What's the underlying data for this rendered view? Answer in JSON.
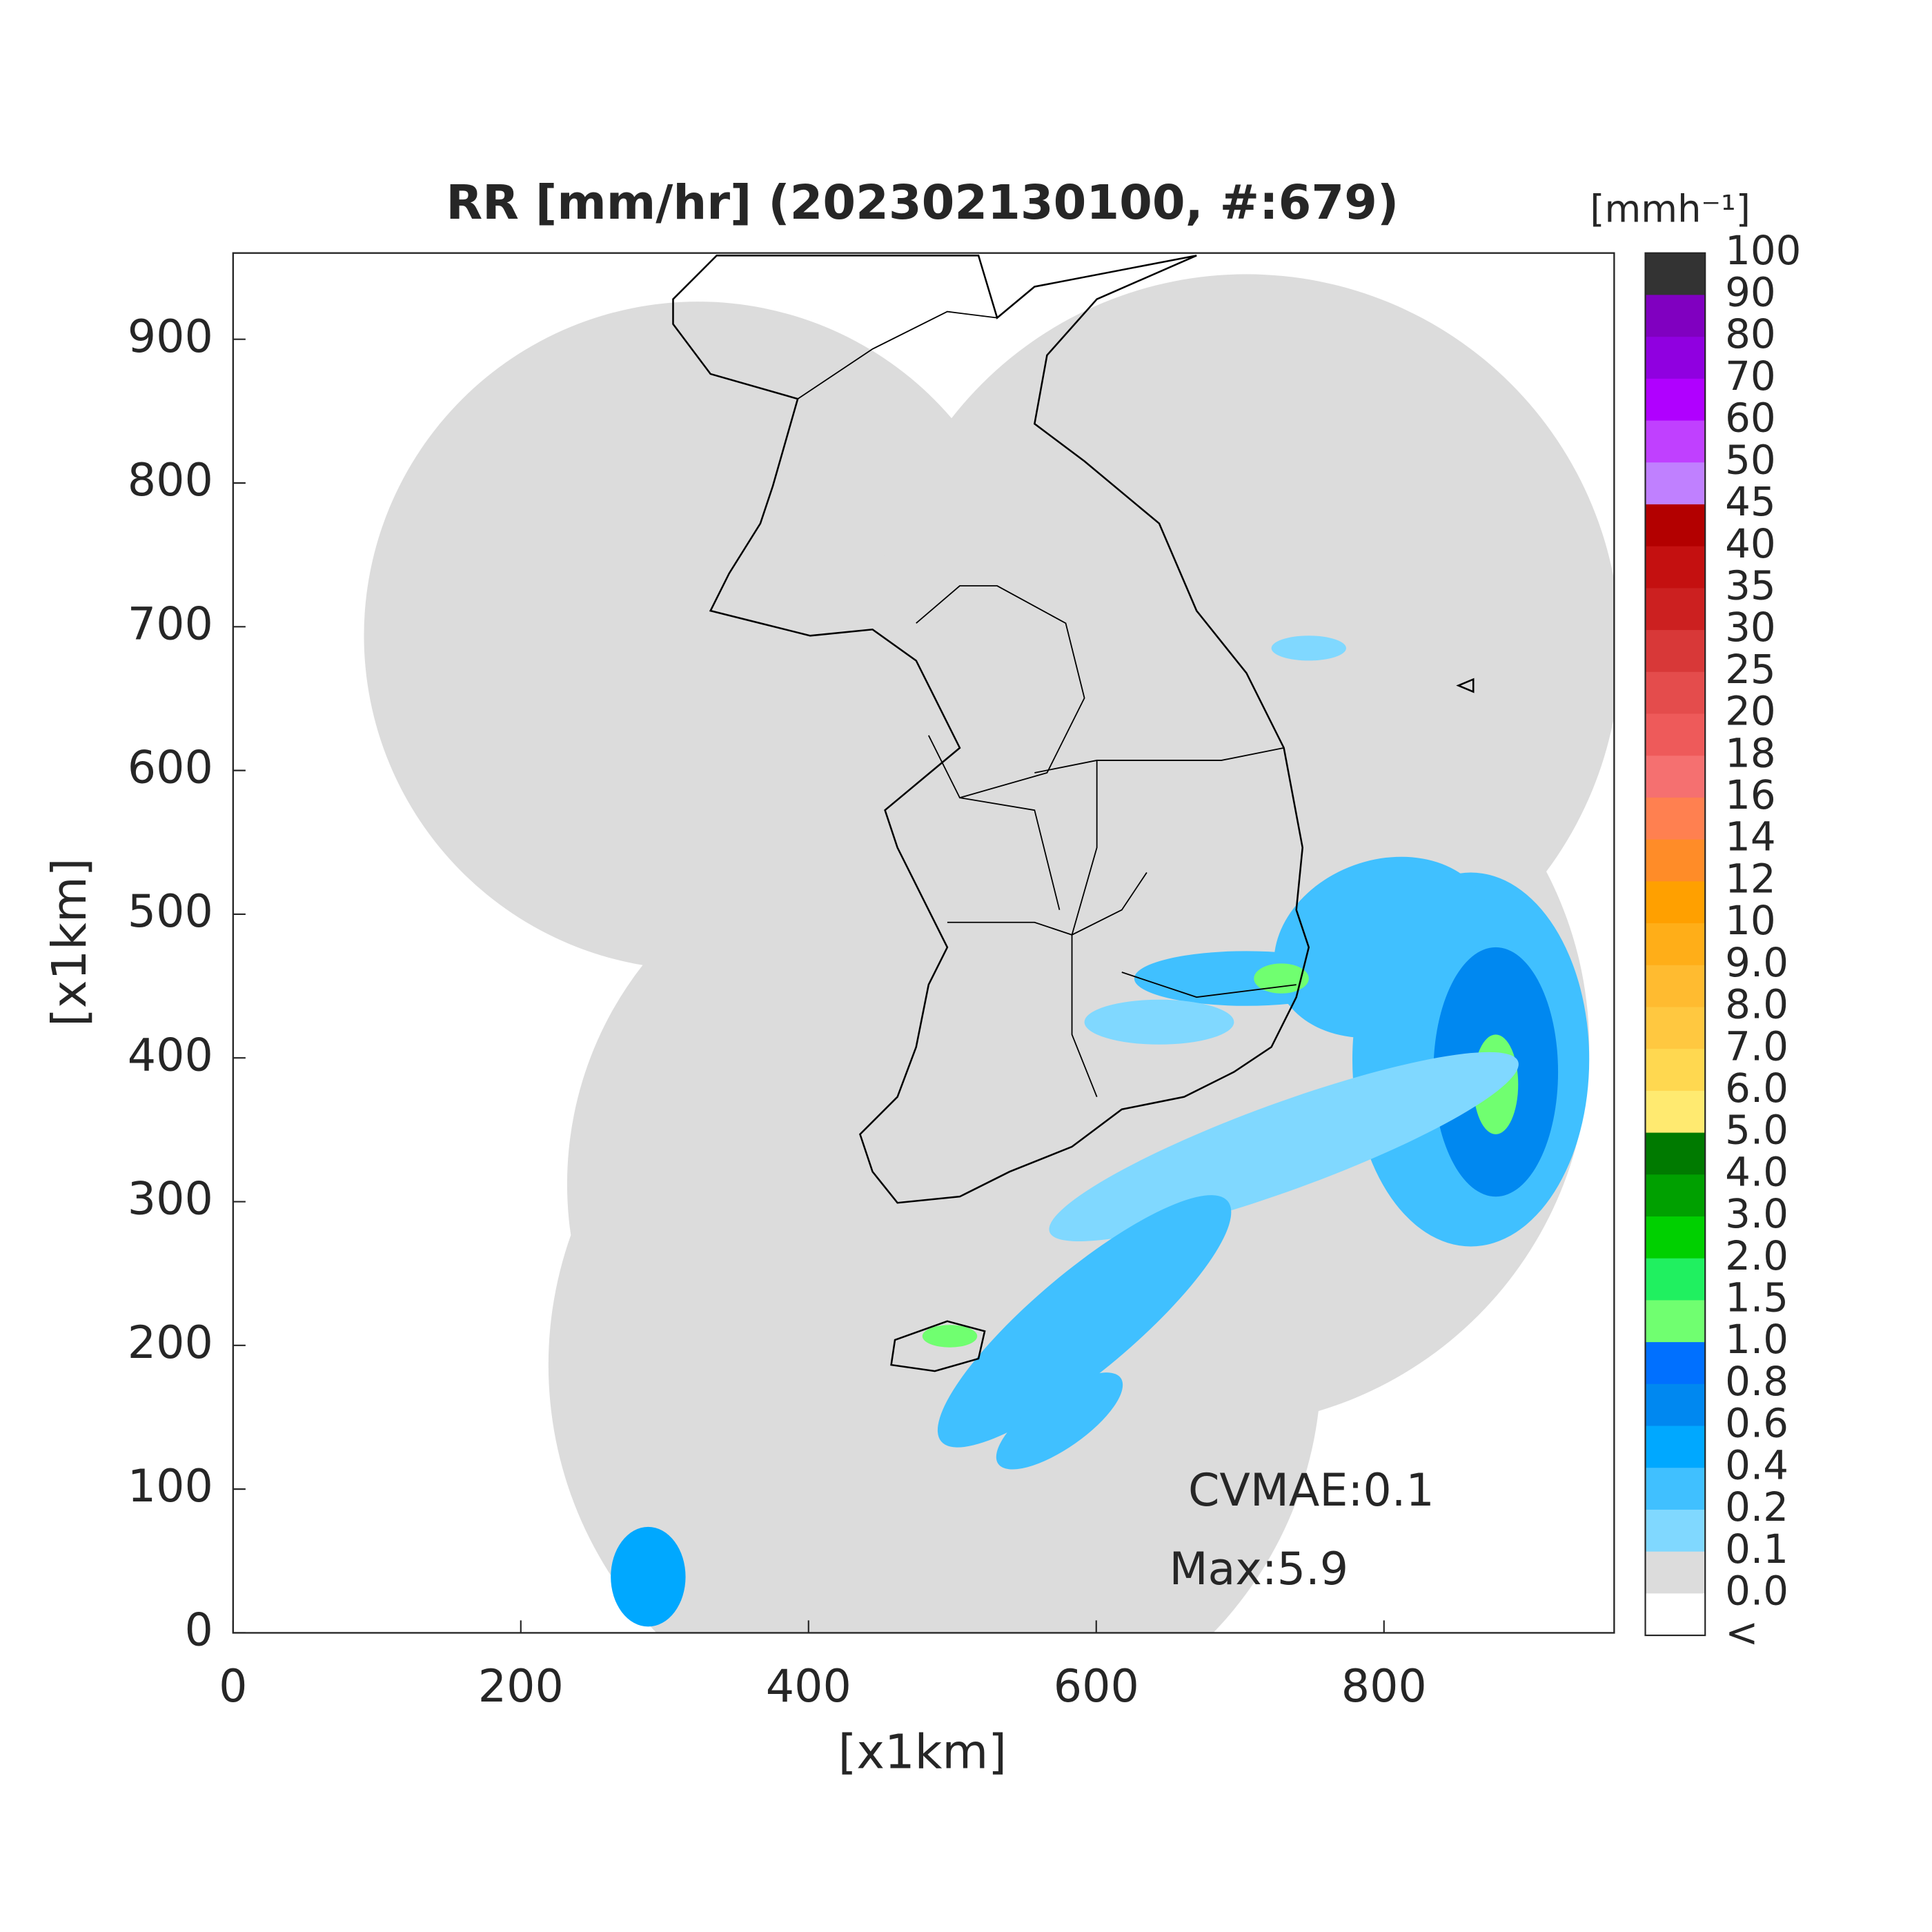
{
  "chart_data": {
    "type": "heatmap",
    "title": "RR [mm/hr] (202302130100, #:679)",
    "x_label": "[x1km]",
    "y_label": "[x1km]",
    "xlim": [
      0,
      960
    ],
    "ylim": [
      0,
      960
    ],
    "xticks": [
      0,
      200,
      400,
      600,
      800
    ],
    "yticks": [
      0,
      100,
      200,
      300,
      400,
      500,
      600,
      700,
      800,
      900
    ],
    "annotations": [
      "CVMAE:0.1",
      "Max:5.9"
    ],
    "colorbar": {
      "title": "[mmh⁻¹]",
      "labels": [
        "100",
        "90",
        "80",
        "70",
        "60",
        "50",
        "45",
        "40",
        "35",
        "30",
        "25",
        "20",
        "18",
        "16",
        "14",
        "12",
        "10",
        "9.0",
        "8.0",
        "7.0",
        "6.0",
        "5.0",
        "4.0",
        "3.0",
        "2.0",
        "1.5",
        "1.0",
        "0.8",
        "0.6",
        "0.4",
        "0.2",
        "0.1",
        "0.0",
        "<"
      ],
      "colors": [
        "#333333",
        "#8000c0",
        "#9000e0",
        "#b000ff",
        "#c040ff",
        "#c080ff",
        "#b30000",
        "#c41010",
        "#cc2020",
        "#d83838",
        "#e44c4c",
        "#ee5a5a",
        "#f57070",
        "#ff8050",
        "#ff8c28",
        "#ffa000",
        "#ffae18",
        "#ffbb30",
        "#ffc840",
        "#ffd850",
        "#ffea70",
        "#007a00",
        "#00a000",
        "#00d000",
        "#20f060",
        "#70ff70",
        "#0070ff",
        "#0088f0",
        "#00a8ff",
        "#40c0ff",
        "#80d8ff",
        "#dcdcdc",
        "#ffffff"
      ]
    }
  }
}
